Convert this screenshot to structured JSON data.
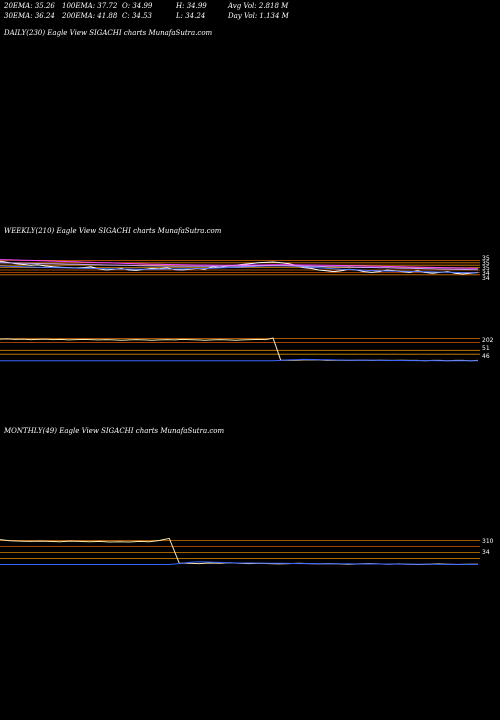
{
  "header": {
    "row1": {
      "ema20": "20EMA: 35.26",
      "ema100": "100EMA: 37.72",
      "open": "O: 34.99",
      "high": "H: 34.99",
      "avgvol": "Avg Vol: 2.818  M"
    },
    "row2": {
      "ema30": "30EMA: 36.24",
      "ema200": "200EMA: 41.88",
      "close": "C: 34.53",
      "low": "L: 34.24",
      "dayvol": "Day Vol: 1.134  M"
    }
  },
  "labels": {
    "daily": "DAILY(230) Eagle   View  SIGACHI charts MunafaSutra.com",
    "weekly": "WEEKLY(210) Eagle   View  SIGACHI charts MunafaSutra.com",
    "monthly": "MONTHLY(49) Eagle   View  SIGACHI charts MunafaSutra.com"
  },
  "chart_data": [
    {
      "type": "line",
      "panel": "weekly-price",
      "series": [
        {
          "color": "#ffffff",
          "values": [
            66,
            64.5,
            63,
            62,
            61,
            61.5,
            60,
            59,
            58.5,
            58,
            57.5,
            58,
            59,
            56.5,
            55,
            56,
            57,
            55,
            54.5,
            56,
            57,
            56.5,
            58,
            55.5,
            55,
            56,
            57,
            56,
            59,
            58,
            60,
            61,
            62,
            63,
            64,
            64.5,
            65,
            64,
            63,
            61,
            58,
            57,
            55,
            54,
            53,
            54,
            56,
            55,
            53,
            52,
            53,
            55,
            54,
            53,
            52,
            54,
            52,
            51,
            52,
            53,
            51,
            50,
            51,
            52
          ]
        },
        {
          "color": "#4a74ff",
          "values": [
            60,
            59.7,
            59.4,
            59.1,
            58.8,
            58.5,
            58.2,
            58,
            57.8,
            57.6,
            57.4,
            57.2,
            57,
            56.8,
            56.6,
            56.4,
            56.3,
            56.2,
            56.1,
            56,
            56,
            56.1,
            56.2,
            56.3,
            56.4,
            56.6,
            56.8,
            57,
            57.3,
            57.6,
            58,
            58.4,
            58.8,
            59.2,
            59.6,
            60,
            60.2,
            60.2,
            60,
            59.6,
            59,
            58.4,
            57.8,
            57.2,
            56.6,
            56,
            55.6,
            55.2,
            54.8,
            54.4,
            54,
            53.8,
            53.6,
            53.4,
            53.2,
            53,
            52.8,
            52.6,
            52.4,
            52.2,
            52,
            51.8,
            51.6,
            51.5
          ]
        },
        {
          "color": "#ff44ff",
          "values": [
            68,
            67.8,
            67.5,
            67.2,
            67,
            66.7,
            66.4,
            66.1,
            65.8,
            65.5,
            65.2,
            64.9,
            64.6,
            64.3,
            64,
            63.7,
            63.4,
            63.1,
            62.8,
            62.5,
            62.3,
            62.1,
            61.9,
            61.7,
            61.5,
            61.4,
            61.3,
            61.2,
            61.1,
            61,
            61,
            61,
            61.1,
            61.2,
            61.3,
            61.4,
            61.5,
            61.5,
            61.5,
            61.4,
            61.3,
            61.2,
            61.1,
            61,
            60.8,
            60.6,
            60.4,
            60.2,
            60,
            59.8,
            59.6,
            59.4,
            59.2,
            59,
            58.8,
            58.6,
            58.4,
            58.2,
            58,
            57.8,
            57.6,
            57.4,
            57.2,
            57
          ]
        },
        {
          "color": "#c4a0ff",
          "values": [
            64,
            63.9,
            63.7,
            63.5,
            63.3,
            63.1,
            62.9,
            62.7,
            62.5,
            62.3,
            62.1,
            61.9,
            61.7,
            61.5,
            61.3,
            61.1,
            60.9,
            60.7,
            60.5,
            60.3,
            60.1,
            60,
            59.9,
            59.8,
            59.7,
            59.6,
            59.6,
            59.6,
            59.6,
            59.7,
            59.8,
            59.9,
            60,
            60.1,
            60.2,
            60.3,
            60.3,
            60.3,
            60.2,
            60.1,
            59.9,
            59.7,
            59.5,
            59.3,
            59.1,
            58.9,
            58.7,
            58.5,
            58.3,
            58.1,
            57.9,
            57.7,
            57.5,
            57.3,
            57.1,
            56.9,
            56.7,
            56.5,
            56.3,
            56.1,
            55.9,
            55.7,
            55.5,
            55.3
          ]
        }
      ]
    },
    {
      "type": "line",
      "panel": "weekly-volume",
      "series": [
        {
          "color": "#ffe8b0",
          "values": [
            88,
            89,
            87,
            88,
            86,
            87,
            88,
            86,
            87,
            85,
            86,
            87,
            86,
            85,
            86,
            85,
            84,
            85,
            86,
            85,
            84,
            85,
            86,
            85,
            87,
            86,
            85,
            84,
            85,
            86,
            85,
            84,
            85,
            86,
            87,
            86,
            92,
            7,
            7,
            7,
            8,
            9,
            8,
            7,
            7,
            7,
            6,
            7,
            7,
            6,
            7,
            6,
            6,
            7,
            6,
            6,
            5,
            6,
            6,
            5,
            6,
            6,
            5,
            6
          ]
        },
        {
          "color": "#3a64ff",
          "values": [
            5,
            5,
            5,
            5,
            5,
            5,
            5,
            5,
            5,
            5,
            5,
            5,
            5,
            5,
            5,
            5,
            5,
            5,
            5,
            5,
            5,
            5,
            5,
            5,
            5,
            5,
            5,
            5,
            5,
            5,
            5,
            5,
            5,
            5,
            5,
            5,
            5,
            6,
            8,
            9,
            10,
            9.5,
            9,
            8.5,
            8,
            7.5,
            7,
            6.8,
            6.6,
            6.4,
            6.2,
            6,
            5.8,
            5.6,
            5.5,
            5.4,
            5.3,
            5.2,
            5.1,
            5,
            5,
            5,
            5,
            5
          ]
        }
      ]
    },
    {
      "type": "line",
      "panel": "monthly",
      "series": [
        {
          "color": "#ffe8b0",
          "values": [
            88,
            84,
            83,
            82,
            83,
            82,
            81,
            83,
            82,
            81,
            82,
            80,
            81,
            80,
            82,
            81,
            85,
            92,
            9,
            9,
            8,
            10,
            9,
            11,
            9,
            8,
            9,
            8,
            7,
            8,
            9,
            8,
            7,
            8,
            7,
            6,
            7,
            8,
            7,
            6,
            7,
            6,
            5,
            6,
            7,
            6,
            5,
            6,
            6
          ]
        },
        {
          "color": "#3a64ff",
          "values": [
            5,
            5,
            5,
            5,
            5,
            5,
            5,
            5,
            5,
            5,
            5,
            5,
            5,
            5,
            5,
            5,
            5,
            5,
            8,
            12,
            14,
            13,
            12,
            11,
            10,
            10,
            9.5,
            9,
            9,
            8.5,
            8,
            8,
            7.8,
            7.6,
            7.4,
            7.2,
            7,
            6.8,
            6.6,
            6.4,
            6.2,
            6,
            5.8,
            5.6,
            5.5,
            5.4,
            5.3,
            5.2,
            5.1
          ]
        }
      ]
    }
  ],
  "levels": {
    "weekly": [
      {
        "y": 67,
        "color": "#ff7700"
      },
      {
        "y": 64,
        "color": "#ff8800"
      },
      {
        "y": 61,
        "color": "#ff9900"
      },
      {
        "y": 58,
        "color": "#ffaa00"
      },
      {
        "y": 55,
        "color": "#ff7700"
      },
      {
        "y": 52,
        "color": "#ff6600"
      },
      {
        "y": 49,
        "color": "#ff8800"
      }
    ],
    "weekly_volume": [
      {
        "y": 90,
        "color": "#ff8800"
      },
      {
        "y": 75,
        "color": "#ff6600"
      },
      {
        "y": 45,
        "color": "#ff9900"
      },
      {
        "y": 30,
        "color": "#ffaa00"
      }
    ],
    "monthly": [
      {
        "y": 85,
        "color": "#ff8800"
      },
      {
        "y": 65,
        "color": "#ff6600"
      },
      {
        "y": 45,
        "color": "#ff9900"
      },
      {
        "y": 25,
        "color": "#ffaa00"
      }
    ]
  },
  "right_labels": {
    "weekly": [
      "35",
      "35",
      "35",
      "34",
      "34"
    ],
    "weekly_volume": [
      "202",
      "51",
      "46"
    ],
    "monthly": [
      "310",
      "34"
    ]
  }
}
